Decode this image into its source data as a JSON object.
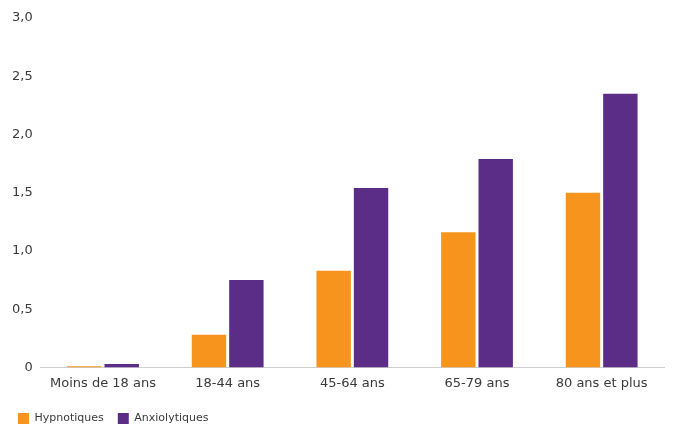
{
  "chart_data": {
    "type": "bar",
    "categories": [
      "Moins de 18 ans",
      "18-44 ans",
      "45-64 ans",
      "65-79 ans",
      "80 ans et plus"
    ],
    "series": [
      {
        "name": "Hypnotiques",
        "color": "#f7941d",
        "values": [
          0.01,
          0.28,
          0.83,
          1.16,
          1.5
        ]
      },
      {
        "name": "Anxiolytiques",
        "color": "#5b2d87",
        "values": [
          0.03,
          0.75,
          1.54,
          1.79,
          2.35
        ]
      }
    ],
    "ylim": [
      0,
      3
    ],
    "yticks": [
      0,
      {
        "value": 0.5,
        "label": "0,5"
      },
      {
        "value": 1,
        "label": "1,0"
      },
      {
        "value": 1.5,
        "label": "1,5"
      },
      {
        "value": 2,
        "label": "2,0"
      },
      {
        "value": 2.5,
        "label": "2,5"
      },
      {
        "value": 3,
        "label": "3,0"
      }
    ],
    "grid": false,
    "legend": "bottom-left"
  }
}
